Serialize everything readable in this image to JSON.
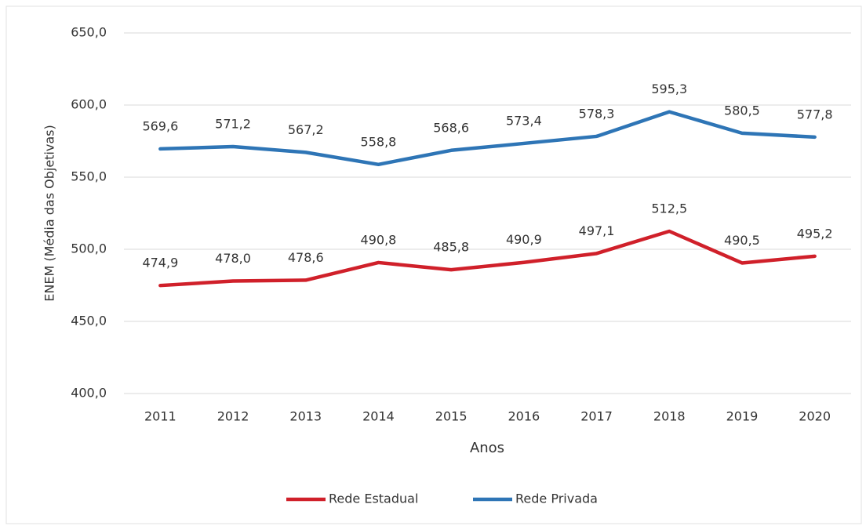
{
  "chart_data": {
    "type": "line",
    "y_label": "ENEM (Média das Objetivas)",
    "x_label": "Anos",
    "categories": [
      "2011",
      "2012",
      "2013",
      "2014",
      "2015",
      "2016",
      "2017",
      "2018",
      "2019",
      "2020"
    ],
    "series": [
      {
        "name": "Rede Estadual",
        "color": "#d0202a",
        "values": [
          474.9,
          478.0,
          478.6,
          490.8,
          485.8,
          490.9,
          497.1,
          512.5,
          490.5,
          495.2
        ],
        "value_labels": [
          "474,9",
          "478,0",
          "478,6",
          "490,8",
          "485,8",
          "490,9",
          "497,1",
          "512,5",
          "490,5",
          "495,2"
        ]
      },
      {
        "name": "Rede Privada",
        "color": "#2e75b6",
        "values": [
          569.6,
          571.2,
          567.2,
          558.8,
          568.6,
          573.4,
          578.3,
          595.3,
          580.5,
          577.8
        ],
        "value_labels": [
          "569,6",
          "571,2",
          "567,2",
          "558,8",
          "568,6",
          "573,4",
          "578,3",
          "595,3",
          "580,5",
          "577,8"
        ]
      }
    ],
    "ylim": [
      400,
      650
    ],
    "yticks": [
      {
        "value": 400,
        "label": "400,0"
      },
      {
        "value": 450,
        "label": "450,0"
      },
      {
        "value": 500,
        "label": "500,0"
      },
      {
        "value": 550,
        "label": "550,0"
      },
      {
        "value": 600,
        "label": "600,0"
      },
      {
        "value": 650,
        "label": "650,0"
      }
    ],
    "grid": true,
    "legend": "bottom"
  }
}
